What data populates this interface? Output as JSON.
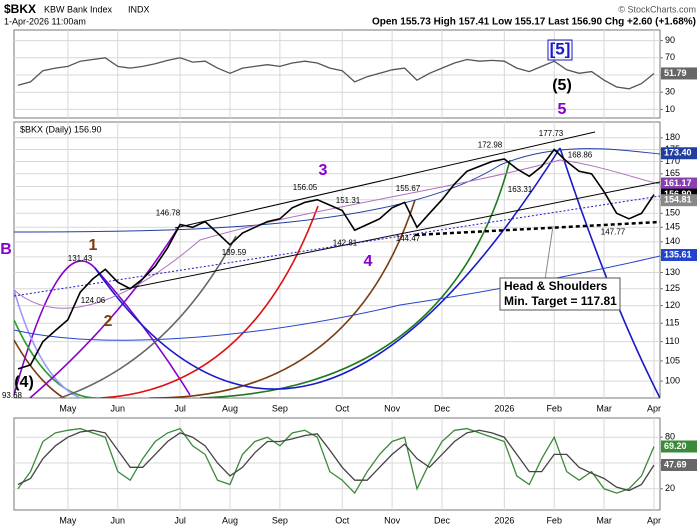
{
  "header": {
    "symbol": "$BKX",
    "name": "KBW Bank Index",
    "exchange": "INDX",
    "datetime": "1-Apr-2026 11:00am",
    "quote": "Open 155.73 High 157.41 Low 155.17 Last 156.90 Chg +2.60 (+1.68%)",
    "credit": "© StockCharts.com"
  },
  "chart_data": [
    {
      "type": "line",
      "ylim": [
        0,
        100
      ],
      "yticks": [
        10,
        30,
        50,
        70,
        90
      ],
      "grid": true,
      "series": [
        {
          "color": "#555555",
          "values": [
            38,
            42,
            55,
            58,
            60,
            66,
            68,
            70,
            60,
            58,
            60,
            63,
            67,
            70,
            65,
            66,
            58,
            52,
            58,
            60,
            62,
            60,
            64,
            66,
            64,
            58,
            55,
            42,
            48,
            52,
            56,
            58,
            44,
            52,
            58,
            64,
            68,
            66,
            67,
            66,
            58,
            54,
            60,
            66,
            56,
            52,
            54,
            44,
            36,
            34,
            40,
            51.79
          ]
        }
      ],
      "last_values": [
        {
          "value": 51.79,
          "color": "#666666"
        }
      ]
    },
    {
      "type": "line",
      "log": true,
      "ylim": [
        96,
        187
      ],
      "yticks": [
        100,
        105,
        110,
        115,
        120,
        125,
        130,
        135,
        140,
        145,
        150,
        155,
        160,
        165,
        170,
        175,
        180
      ],
      "grid": true,
      "categories": [
        null,
        null,
        null,
        null,
        "May",
        null,
        null,
        null,
        "Jun",
        null,
        null,
        null,
        null,
        "Jul",
        null,
        null,
        null,
        "Aug",
        null,
        null,
        null,
        "Sep",
        null,
        null,
        null,
        null,
        "Oct",
        null,
        null,
        null,
        "Nov",
        null,
        null,
        null,
        "Dec",
        null,
        null,
        null,
        null,
        "2026",
        null,
        null,
        null,
        "Feb",
        null,
        null,
        null,
        "Mar",
        null,
        null,
        null,
        "Apr"
      ],
      "series": [
        {
          "name": "$BKX (Daily) 156.90",
          "color": "#000000",
          "values": [
            103,
            104,
            110,
            113,
            116,
            124,
            128,
            131,
            127,
            125,
            128,
            132,
            138,
            146,
            145,
            147,
            143,
            139,
            143,
            145,
            147,
            148,
            152,
            154,
            155,
            153,
            151,
            144,
            146,
            148,
            152,
            154,
            145,
            150,
            155,
            161,
            166,
            168,
            170,
            171,
            167,
            164,
            168,
            175,
            170,
            166,
            165,
            158,
            150,
            148,
            150,
            156.9
          ]
        }
      ],
      "price_labels": [
        131.43,
        124.06,
        146.78,
        139.59,
        156.05,
        151.31,
        142.81,
        155.67,
        144.47,
        172.98,
        163.31,
        177.73,
        168.86,
        147.77,
        93.68
      ],
      "last_values": [
        {
          "value": 173.4,
          "label": "173.40",
          "color": "#1f3fa0"
        },
        {
          "value": 161.17,
          "color": "#8a3fb0"
        },
        {
          "value": 156.9,
          "label": "156.90",
          "color": "#000000"
        },
        {
          "value": 154.81,
          "color": "#888888"
        },
        {
          "value": 135.61,
          "color": "#2244cc"
        }
      ],
      "wave_labels": [
        {
          "text": "B",
          "color": "#8800cc"
        },
        {
          "text": "1",
          "color": "#7a3b10"
        },
        {
          "text": "2",
          "color": "#7a3b10"
        },
        {
          "text": "3",
          "color": "#8800cc"
        },
        {
          "text": "4",
          "color": "#8800cc"
        },
        {
          "text": "5",
          "color": "#8800cc"
        },
        {
          "text": "(5)",
          "color": "#000000"
        },
        {
          "text": "[5]",
          "color": "#1a1acc"
        },
        {
          "text": "(4)",
          "color": "#000000"
        }
      ],
      "annotation": [
        "Head & Shoulders",
        "Min. Target = 117.81"
      ]
    },
    {
      "type": "line",
      "ylim": [
        0,
        100
      ],
      "yticks": [
        20,
        50,
        80
      ],
      "grid": true,
      "series": [
        {
          "color": "#3a8a3a",
          "values": [
            20,
            40,
            75,
            85,
            88,
            90,
            85,
            80,
            40,
            30,
            55,
            75,
            85,
            90,
            70,
            60,
            30,
            25,
            60,
            75,
            80,
            70,
            85,
            88,
            80,
            40,
            30,
            15,
            40,
            60,
            75,
            80,
            20,
            50,
            75,
            88,
            90,
            85,
            80,
            75,
            35,
            25,
            55,
            80,
            40,
            30,
            40,
            20,
            15,
            20,
            35,
            69.2
          ]
        },
        {
          "color": "#444444",
          "values": [
            25,
            32,
            55,
            70,
            80,
            86,
            88,
            85,
            65,
            45,
            45,
            60,
            75,
            85,
            80,
            70,
            50,
            35,
            45,
            62,
            75,
            75,
            78,
            82,
            84,
            65,
            45,
            30,
            30,
            45,
            60,
            72,
            55,
            45,
            60,
            75,
            85,
            88,
            85,
            80,
            60,
            40,
            40,
            60,
            60,
            45,
            38,
            32,
            22,
            18,
            25,
            47.69
          ]
        }
      ],
      "last_values": [
        {
          "value": 69.2,
          "label": "69.20",
          "color": "#3a8a3a"
        },
        {
          "value": 47.69,
          "color": "#666666"
        }
      ]
    }
  ]
}
